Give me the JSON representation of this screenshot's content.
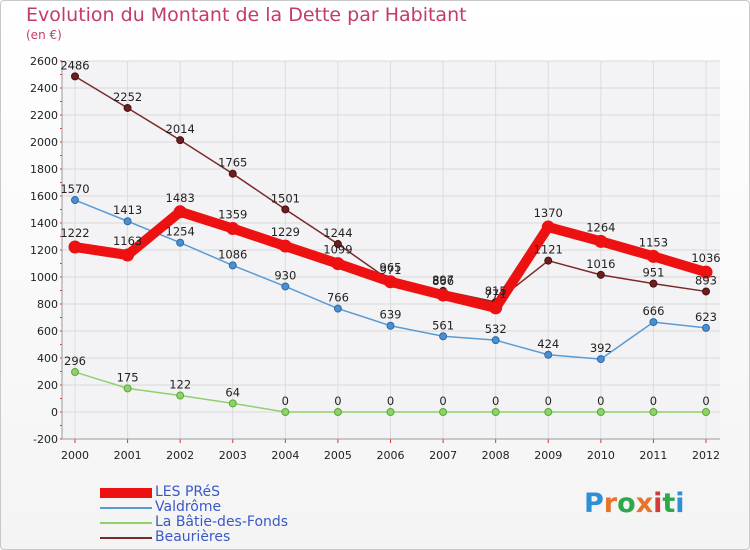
{
  "title": "Evolution du Montant de la Dette par Habitant",
  "subtitle": "(en €)",
  "logo": {
    "text": "Proxiti",
    "colors": [
      "#2e8fd6",
      "#e8742a",
      "#2ea84a",
      "#e8742a",
      "#d4393b",
      "#2ea84a",
      "#2e8fd6"
    ]
  },
  "chart_data": {
    "type": "line",
    "x": [
      "2000",
      "2001",
      "2002",
      "2003",
      "2004",
      "2005",
      "2006",
      "2007",
      "2008",
      "2009",
      "2010",
      "2011",
      "2012"
    ],
    "ylim": [
      -200,
      2600
    ],
    "yticks": [
      "-200",
      "0",
      "200",
      "400",
      "600",
      "800",
      "1000",
      "1200",
      "1400",
      "1600",
      "1800",
      "2000",
      "2200",
      "2400",
      "2600"
    ],
    "grid": true,
    "legend_position": "bottom-left",
    "series": [
      {
        "name": "LES PRéS",
        "color": "#ee1111",
        "values": [
          1222,
          1163,
          1483,
          1359,
          1229,
          1099,
          965,
          866,
          771,
          1370,
          1264,
          1153,
          1036
        ],
        "labels": [
          "1222",
          "1163",
          "1483",
          "1359",
          "1229",
          "1099",
          "965",
          "866",
          "771",
          "1370",
          "1264",
          "1153",
          "1036"
        ]
      },
      {
        "name": "Valdrôme",
        "color": "#5b9bd5",
        "values": [
          1570,
          1413,
          1254,
          1086,
          930,
          766,
          639,
          561,
          532,
          424,
          392,
          666,
          623
        ],
        "labels": [
          "1570",
          "1413",
          "1254",
          "1086",
          "930",
          "766",
          "639",
          "561",
          "532",
          "424",
          "392",
          "666",
          "623"
        ]
      },
      {
        "name": "La Bâtie-des-Fonds",
        "color": "#8fd16a",
        "values": [
          296,
          175,
          122,
          64,
          0,
          0,
          0,
          0,
          0,
          0,
          0,
          0,
          0
        ],
        "labels": [
          "296",
          "175",
          "122",
          "64",
          "0",
          "0",
          "0",
          "0",
          "0",
          "0",
          "0",
          "0",
          "0"
        ]
      },
      {
        "name": "Beaurières",
        "color": "#7a2a2a",
        "values": [
          2486,
          2252,
          2014,
          1765,
          1501,
          1244,
          971,
          897,
          815,
          1121,
          1016,
          951,
          893
        ],
        "labels": [
          "2486",
          "2252",
          "2014",
          "1765",
          "1501",
          "1244",
          "971",
          "897",
          "815",
          "1121",
          "1016",
          "951",
          "893"
        ]
      }
    ]
  }
}
